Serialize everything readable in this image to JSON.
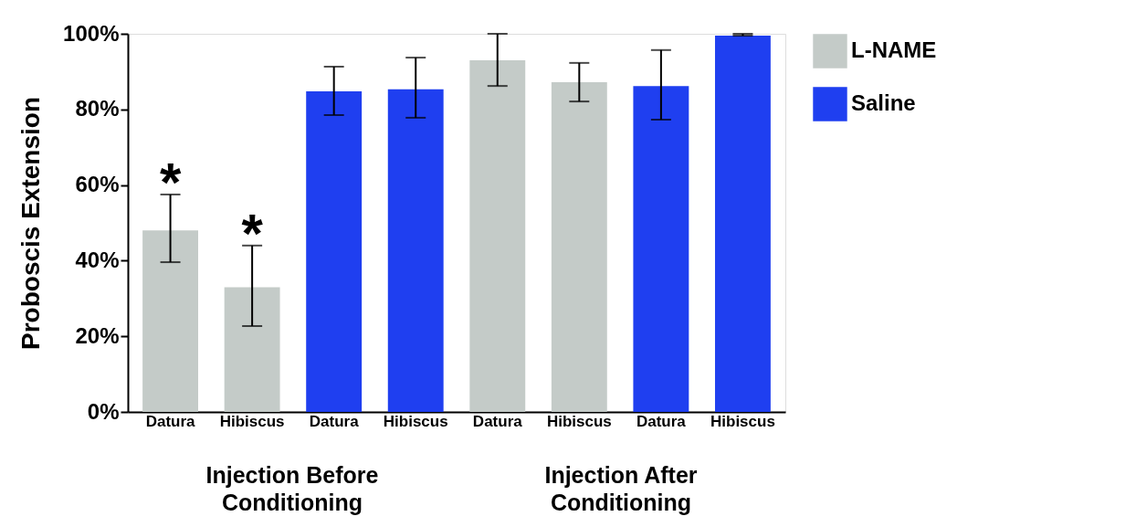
{
  "chart_data": {
    "type": "bar",
    "ylabel": "Proboscis Extension",
    "categories": [
      "Datura",
      "Hibiscus",
      "Datura",
      "Hibiscus",
      "Datura",
      "Hibiscus",
      "Datura",
      "Hibiscus"
    ],
    "series": [
      {
        "name": "L-NAME",
        "color": "#c4cbc8",
        "values": [
          48,
          33,
          null,
          null,
          93,
          87.2,
          null,
          null
        ],
        "errors": [
          [
            39.6,
            57.5
          ],
          [
            22.7,
            44
          ],
          null,
          null,
          [
            86.2,
            100
          ],
          [
            82.1,
            92.3
          ],
          null,
          null
        ]
      },
      {
        "name": "Saline",
        "color": "#1f3ff0",
        "values": [
          null,
          null,
          84.8,
          85.3,
          null,
          null,
          86.2,
          99.5
        ],
        "errors": [
          null,
          null,
          [
            78.5,
            91.3
          ],
          [
            77.8,
            93.7
          ],
          null,
          null,
          [
            77.3,
            95.7
          ],
          [
            99.5,
            100
          ]
        ]
      }
    ],
    "ylim": [
      0,
      100
    ],
    "yticks": [
      {
        "value": 0,
        "label": "0%"
      },
      {
        "value": 20,
        "label": "20%"
      },
      {
        "value": 40,
        "label": "40%"
      },
      {
        "value": 60,
        "label": "60%"
      },
      {
        "value": 80,
        "label": "80%"
      },
      {
        "value": 100,
        "label": "100%"
      }
    ],
    "annotations": [
      "*",
      "*",
      "Injection Before Conditioning",
      "Injection After Conditioning"
    ],
    "legend": "top right",
    "grid": false
  }
}
